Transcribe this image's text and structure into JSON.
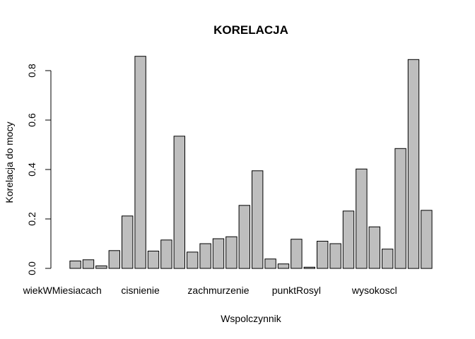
{
  "chart_data": {
    "type": "bar",
    "title": "KORELACJA",
    "xlabel": "Wspolczynnik",
    "ylabel": "Korelacja do mocy",
    "ylim": [
      0,
      0.85
    ],
    "yticks": [
      "0.0",
      "0.2",
      "0.4",
      "0.6",
      "0.8"
    ],
    "grid": false,
    "category_labels": [
      {
        "index": 1,
        "label": "wiekWMiesiacach"
      },
      {
        "index": 7,
        "label": "cisnienie"
      },
      {
        "index": 13,
        "label": "zachmurzenie"
      },
      {
        "index": 19,
        "label": "punktRosyl"
      },
      {
        "index": 25,
        "label": "wysokoscl"
      }
    ],
    "values": [
      0.0,
      0.03,
      0.035,
      0.01,
      0.072,
      0.212,
      0.858,
      0.07,
      0.115,
      0.535,
      0.066,
      0.1,
      0.12,
      0.128,
      0.255,
      0.395,
      0.038,
      0.018,
      0.118,
      0.005,
      0.11,
      0.1,
      0.232,
      0.402,
      0.168,
      0.078,
      0.485,
      0.845,
      0.235
    ]
  }
}
